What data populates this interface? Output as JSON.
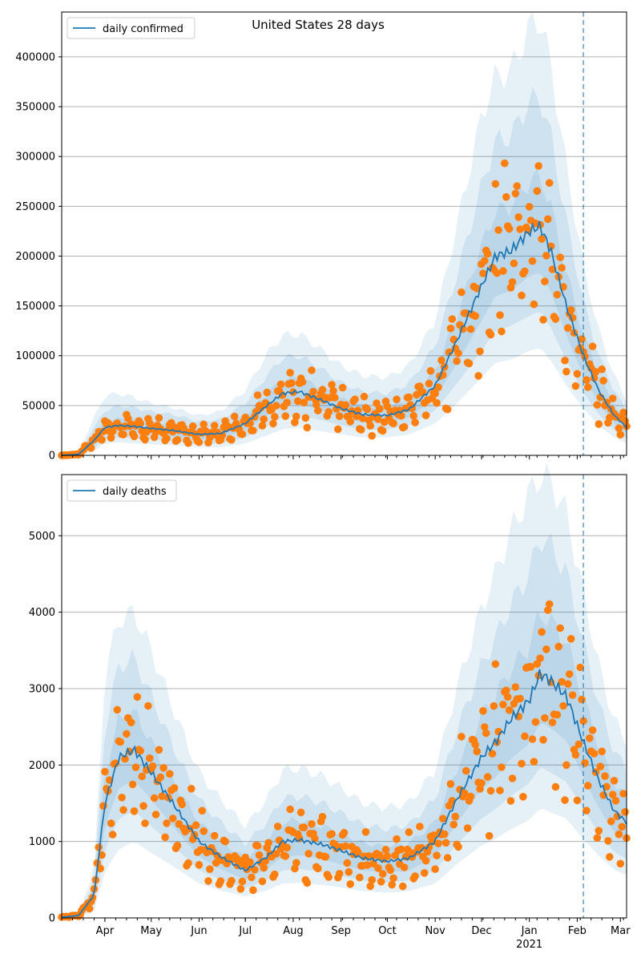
{
  "figure": {
    "title": "United States 28 days"
  },
  "colors": {
    "line": "#1f77b4",
    "points": "#ff7f0e",
    "band": "#1f77b4",
    "grid": "#b0b0b0",
    "forecast_line": "#1f77b4"
  },
  "x_axis": {
    "domain": [
      "2020-03-04",
      "2021-03-05"
    ],
    "forecast_start": "2021-02-05",
    "month_ticks": [
      {
        "date": "2020-04-01",
        "label": "Apr"
      },
      {
        "date": "2020-05-01",
        "label": "May"
      },
      {
        "date": "2020-06-01",
        "label": "Jun"
      },
      {
        "date": "2020-07-01",
        "label": "Jul"
      },
      {
        "date": "2020-08-01",
        "label": "Aug"
      },
      {
        "date": "2020-09-01",
        "label": "Sep"
      },
      {
        "date": "2020-10-01",
        "label": "Oct"
      },
      {
        "date": "2020-11-01",
        "label": "Nov"
      },
      {
        "date": "2020-12-01",
        "label": "Dec"
      },
      {
        "date": "2021-01-01",
        "label": "Jan"
      },
      {
        "date": "2021-02-01",
        "label": "Feb"
      },
      {
        "date": "2021-03-01",
        "label": "Mar"
      }
    ],
    "year_label": {
      "date": "2021-01-01",
      "label": "2021"
    }
  },
  "chart_data": [
    {
      "type": "line",
      "legend": "daily confirmed",
      "legend_position": "upper-left",
      "grid": true,
      "ylim": [
        0,
        445000
      ],
      "yticks": [
        0,
        50000,
        100000,
        150000,
        200000,
        250000,
        300000,
        350000,
        400000
      ],
      "ytick_labels": [
        "0",
        "50000",
        "100000",
        "150000",
        "200000",
        "250000",
        "300000",
        "350000",
        "400000"
      ],
      "x_dates": [
        "2020-03-04",
        "2020-03-15",
        "2020-03-25",
        "2020-04-01",
        "2020-04-10",
        "2020-04-20",
        "2020-05-01",
        "2020-05-15",
        "2020-06-01",
        "2020-06-15",
        "2020-07-01",
        "2020-07-15",
        "2020-07-25",
        "2020-08-05",
        "2020-08-20",
        "2020-09-01",
        "2020-09-15",
        "2020-10-01",
        "2020-10-15",
        "2020-11-01",
        "2020-11-15",
        "2020-12-01",
        "2020-12-10",
        "2020-12-20",
        "2021-01-01",
        "2021-01-08",
        "2021-01-15",
        "2021-01-25",
        "2021-02-05",
        "2021-02-15",
        "2021-02-25",
        "2021-03-05"
      ],
      "series": [
        {
          "name": "daily confirmed",
          "values": [
            0,
            1000,
            15000,
            28000,
            30000,
            29000,
            27000,
            25000,
            21000,
            22000,
            32000,
            50000,
            62000,
            64000,
            55000,
            47000,
            41000,
            40000,
            46000,
            70000,
            115000,
            170000,
            200000,
            205000,
            225000,
            230000,
            205000,
            150000,
            100000,
            65000,
            40000,
            28000
          ]
        }
      ],
      "bands": [
        {
          "lower": [
            0,
            500,
            10000,
            22000,
            24000,
            23000,
            21000,
            19000,
            16000,
            17000,
            25000,
            40000,
            50000,
            52000,
            45000,
            38000,
            33000,
            33000,
            38000,
            57000,
            92000,
            135000,
            160000,
            165000,
            180000,
            184000,
            164000,
            120000,
            80000,
            52000,
            32000,
            22000
          ],
          "upper": [
            0,
            1500,
            20000,
            34000,
            37000,
            36000,
            33000,
            31000,
            26000,
            27000,
            40000,
            62000,
            76000,
            78000,
            67000,
            57000,
            50000,
            48000,
            56000,
            85000,
            140000,
            210000,
            245000,
            250000,
            275000,
            280000,
            250000,
            183000,
            122000,
            80000,
            50000,
            35000
          ]
        },
        {
          "lower": [
            0,
            300,
            7000,
            17000,
            18000,
            17000,
            16000,
            14000,
            12000,
            12000,
            18000,
            30000,
            38000,
            40000,
            35000,
            30000,
            26000,
            26000,
            30000,
            45000,
            72000,
            105000,
            125000,
            130000,
            140000,
            145000,
            128000,
            95000,
            63000,
            41000,
            25000,
            17000
          ],
          "upper": [
            0,
            2000,
            28000,
            45000,
            50000,
            48000,
            44000,
            41000,
            34000,
            36000,
            52000,
            80000,
            98000,
            100000,
            86000,
            73000,
            64000,
            62000,
            72000,
            110000,
            180000,
            270000,
            315000,
            320000,
            355000,
            360000,
            320000,
            235000,
            155000,
            100000,
            65000,
            45000
          ]
        },
        {
          "lower": [
            0,
            100,
            4000,
            12000,
            13000,
            12000,
            11000,
            10000,
            8000,
            8000,
            12000,
            20000,
            26000,
            28000,
            24000,
            21000,
            18000,
            18000,
            21000,
            32000,
            52000,
            78000,
            93000,
            96000,
            105000,
            108000,
            95000,
            70000,
            47000,
            30000,
            18000,
            12000
          ],
          "upper": [
            0,
            3000,
            38000,
            60000,
            62000,
            58000,
            52000,
            48000,
            40000,
            44000,
            65000,
            102000,
            120000,
            122000,
            105000,
            90000,
            80000,
            78000,
            90000,
            135000,
            230000,
            340000,
            380000,
            385000,
            430000,
            440000,
            390000,
            290000,
            190000,
            125000,
            80000,
            55000
          ]
        }
      ],
      "points_seed": 7
    },
    {
      "type": "line",
      "legend": "daily deaths",
      "legend_position": "upper-left",
      "grid": true,
      "ylim": [
        0,
        5800
      ],
      "yticks": [
        0,
        1000,
        2000,
        3000,
        4000,
        5000
      ],
      "ytick_labels": [
        "0",
        "1000",
        "2000",
        "3000",
        "4000",
        "5000"
      ],
      "x_dates": [
        "2020-03-04",
        "2020-03-15",
        "2020-03-25",
        "2020-04-01",
        "2020-04-10",
        "2020-04-20",
        "2020-05-01",
        "2020-05-15",
        "2020-06-01",
        "2020-06-15",
        "2020-07-01",
        "2020-07-15",
        "2020-07-25",
        "2020-08-05",
        "2020-08-20",
        "2020-09-01",
        "2020-09-15",
        "2020-10-01",
        "2020-10-15",
        "2020-11-01",
        "2020-11-15",
        "2020-12-01",
        "2020-12-10",
        "2020-12-20",
        "2021-01-01",
        "2021-01-08",
        "2021-01-15",
        "2021-01-25",
        "2021-02-05",
        "2021-02-15",
        "2021-02-25",
        "2021-03-05"
      ],
      "series": [
        {
          "name": "daily deaths",
          "values": [
            10,
            30,
            300,
            1500,
            2100,
            2200,
            1900,
            1500,
            1000,
            800,
            620,
            800,
            1000,
            1020,
            960,
            880,
            780,
            740,
            780,
            1000,
            1550,
            2100,
            2300,
            2600,
            2850,
            3200,
            3100,
            2900,
            2300,
            1800,
            1400,
            1250
          ]
        }
      ],
      "bands": [
        {
          "lower": [
            5,
            20,
            220,
            1200,
            1700,
            1800,
            1550,
            1200,
            800,
            640,
            500,
            640,
            800,
            820,
            770,
            700,
            620,
            590,
            620,
            800,
            1240,
            1680,
            1840,
            2080,
            2280,
            2560,
            2480,
            2320,
            1840,
            1440,
            1120,
            1000
          ],
          "upper": [
            15,
            40,
            380,
            1900,
            2600,
            2700,
            2300,
            1800,
            1250,
            1000,
            780,
            1000,
            1250,
            1280,
            1200,
            1100,
            980,
            930,
            980,
            1250,
            1950,
            2650,
            2900,
            3250,
            3550,
            4000,
            3870,
            3620,
            2880,
            2250,
            1750,
            1560
          ]
        },
        {
          "lower": [
            3,
            12,
            150,
            900,
            1300,
            1400,
            1200,
            950,
            620,
            500,
            390,
            500,
            620,
            640,
            600,
            550,
            490,
            460,
            490,
            620,
            960,
            1300,
            1420,
            1600,
            1760,
            1980,
            1900,
            1780,
            1420,
            1110,
            860,
            770
          ],
          "upper": [
            20,
            55,
            480,
            2500,
            3300,
            3400,
            2900,
            2250,
            1550,
            1250,
            970,
            1250,
            1560,
            1590,
            1500,
            1370,
            1220,
            1160,
            1220,
            1560,
            2450,
            3300,
            3650,
            4100,
            4500,
            5000,
            4850,
            4520,
            3600,
            2800,
            2180,
            1950
          ]
        },
        {
          "lower": [
            1,
            6,
            80,
            600,
            900,
            1000,
            850,
            680,
            450,
            360,
            280,
            360,
            450,
            460,
            430,
            400,
            350,
            330,
            350,
            450,
            700,
            950,
            1030,
            1160,
            1280,
            1440,
            1380,
            1300,
            1030,
            810,
            630,
            560
          ],
          "upper": [
            30,
            75,
            620,
            3200,
            3900,
            4000,
            3500,
            2750,
            1900,
            1550,
            1200,
            1550,
            1930,
            1960,
            1850,
            1700,
            1500,
            1440,
            1500,
            1930,
            3000,
            4050,
            4500,
            5050,
            5550,
            5800,
            5700,
            5300,
            4250,
            3300,
            2580,
            2300
          ]
        }
      ],
      "points_seed": 13
    }
  ]
}
